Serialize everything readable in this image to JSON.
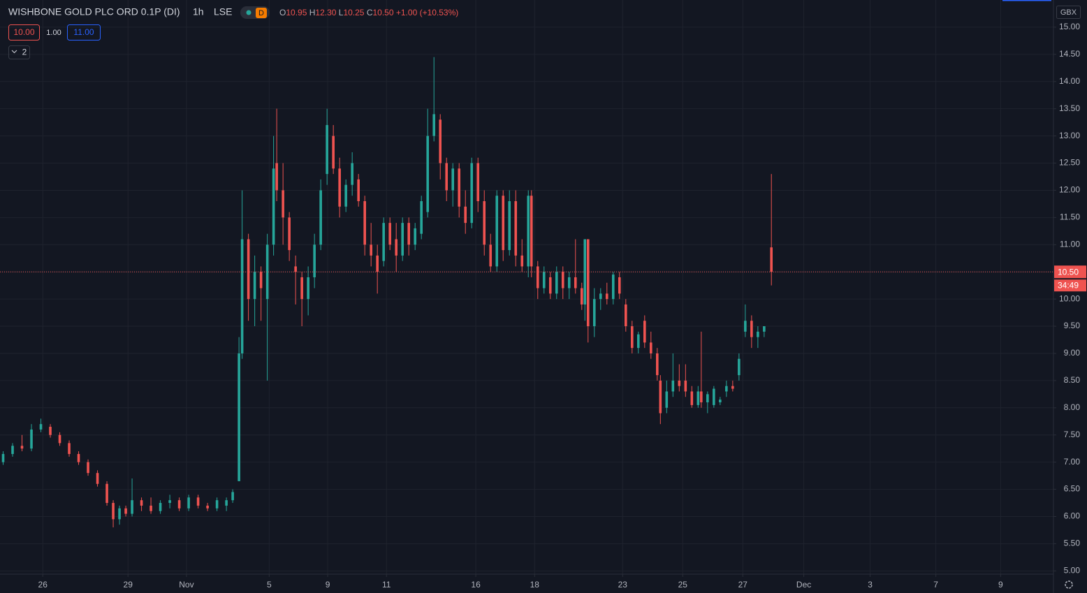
{
  "chart_data": {
    "type": "candlestick",
    "title": "WISHBONE GOLD PLC ORD 0.1P (DI)",
    "interval": "1h",
    "exchange": "LSE",
    "badge": "D",
    "ohlc_legend": [
      {
        "key": "O",
        "value": "10.95"
      },
      {
        "key": "H",
        "value": "12.30"
      },
      {
        "key": "L",
        "value": "10.25"
      },
      {
        "key": "C",
        "value": "10.50"
      }
    ],
    "change": "+1.00 (+10.53%)",
    "buttons": [
      "10.00",
      "1.00",
      "11.00"
    ],
    "indicator_count": "2",
    "currency": "GBX",
    "countdown": "34:49",
    "last_price": {
      "value": 10.5,
      "label": "10.50"
    },
    "up_color": "#26a69a",
    "down_color": "#ef5350",
    "grid": true,
    "xlim": [
      0,
      335
    ],
    "ylim": [
      4.94,
      15.5
    ],
    "xticks": [
      {
        "value": 13.6,
        "label": "26"
      },
      {
        "value": 40.7,
        "label": "29"
      },
      {
        "value": 59.3,
        "label": "Nov"
      },
      {
        "value": 85.6,
        "label": "5"
      },
      {
        "value": 104.2,
        "label": "9"
      },
      {
        "value": 122.9,
        "label": "11"
      },
      {
        "value": 151.3,
        "label": "16"
      },
      {
        "value": 170,
        "label": "18"
      },
      {
        "value": 198,
        "label": "23"
      },
      {
        "value": 217.1,
        "label": "25"
      },
      {
        "value": 236.2,
        "label": "27"
      },
      {
        "value": 255.6,
        "label": "Dec"
      },
      {
        "value": 276.7,
        "label": "3"
      },
      {
        "value": 297.6,
        "label": "7"
      },
      {
        "value": 318.2,
        "label": "9"
      }
    ],
    "yticks": [
      {
        "value": 5,
        "label": "5.00"
      },
      {
        "value": 5.5,
        "label": "5.50"
      },
      {
        "value": 6,
        "label": "6.00"
      },
      {
        "value": 6.5,
        "label": "6.50"
      },
      {
        "value": 7,
        "label": "7.00"
      },
      {
        "value": 7.5,
        "label": "7.50"
      },
      {
        "value": 8,
        "label": "8.00"
      },
      {
        "value": 8.5,
        "label": "8.50"
      },
      {
        "value": 9,
        "label": "9.00"
      },
      {
        "value": 9.5,
        "label": "9.50"
      },
      {
        "value": 10,
        "label": "10.00"
      },
      {
        "value": 10.5,
        "label": "10.50"
      },
      {
        "value": 11,
        "label": "11.00"
      },
      {
        "value": 11.5,
        "label": "11.50"
      },
      {
        "value": 12,
        "label": "12.00"
      },
      {
        "value": 12.5,
        "label": "12.50"
      },
      {
        "value": 13,
        "label": "13.00"
      },
      {
        "value": 13.5,
        "label": "13.50"
      },
      {
        "value": 14,
        "label": "14.00"
      },
      {
        "value": 14.5,
        "label": "14.50"
      },
      {
        "value": 15,
        "label": "15.00"
      }
    ],
    "x": [
      1,
      4,
      7,
      10,
      13,
      16,
      19,
      22,
      25,
      28,
      31,
      34,
      36,
      38,
      40,
      42,
      45,
      48,
      51,
      54,
      57,
      60,
      63,
      66,
      69,
      72,
      74,
      76,
      77,
      79,
      81,
      83,
      85,
      87,
      88,
      90,
      92,
      94,
      96,
      98,
      100,
      102,
      104,
      106,
      108,
      110,
      112,
      114,
      116,
      118,
      120,
      122,
      124,
      126,
      128,
      130,
      132,
      134,
      136,
      138,
      140,
      142,
      144,
      146,
      148,
      150,
      152,
      154,
      156,
      158,
      160,
      162,
      164,
      166,
      168,
      169,
      171,
      173,
      175,
      177,
      179,
      181,
      183,
      185,
      186,
      187,
      189,
      191,
      193,
      195,
      197,
      199,
      201,
      203,
      205,
      207,
      209,
      210,
      212,
      214,
      216,
      218,
      220,
      222,
      223,
      225,
      227,
      229,
      231,
      233,
      235,
      237,
      239,
      241,
      243,
      245.3
    ],
    "open": [
      7.0,
      7.15,
      7.3,
      7.25,
      7.6,
      7.65,
      7.5,
      7.35,
      7.15,
      7.0,
      6.8,
      6.6,
      6.25,
      5.95,
      6.15,
      6.05,
      6.3,
      6.2,
      6.1,
      6.25,
      6.3,
      6.15,
      6.35,
      6.2,
      6.15,
      6.2,
      6.3,
      6.65,
      9.0,
      11.1,
      10.0,
      10.5,
      10.0,
      11.0,
      12.5,
      12.0,
      11.5,
      10.6,
      10.4,
      10.0,
      10.4,
      11.0,
      12.3,
      13.0,
      12.4,
      11.7,
      12.1,
      12.2,
      11.8,
      11.0,
      10.8,
      10.7,
      11.4,
      11.1,
      10.8,
      11.4,
      11.0,
      11.2,
      11.6,
      13.0,
      13.3,
      12.5,
      12.0,
      12.4,
      11.7,
      11.4,
      12.5,
      11.8,
      11.0,
      10.6,
      11.9,
      10.9,
      11.8,
      10.8,
      10.6,
      11.9,
      10.6,
      10.2,
      10.4,
      10.1,
      10.5,
      10.2,
      10.4,
      10.2,
      9.9,
      11.1,
      9.5,
      10.0,
      10.1,
      10.0,
      10.4,
      9.9,
      9.5,
      9.1,
      9.6,
      9.2,
      9.0,
      8.5,
      8.0,
      8.3,
      8.5,
      8.5,
      8.3,
      8.05,
      8.3,
      8.1,
      8.05,
      8.1,
      8.3,
      8.4,
      8.6,
      9.4,
      9.6,
      9.3,
      9.4,
      10.95
    ],
    "high": [
      7.2,
      7.35,
      7.5,
      7.7,
      7.8,
      7.7,
      7.55,
      7.4,
      7.2,
      7.05,
      6.85,
      6.65,
      6.3,
      6.2,
      6.2,
      6.7,
      6.35,
      6.35,
      6.3,
      6.4,
      6.35,
      6.4,
      6.4,
      6.25,
      6.35,
      6.35,
      6.5,
      9.3,
      12.0,
      11.2,
      10.8,
      10.6,
      11.2,
      13.0,
      13.5,
      12.5,
      11.6,
      10.8,
      10.5,
      10.6,
      11.2,
      12.2,
      13.5,
      13.2,
      12.6,
      12.2,
      12.7,
      12.3,
      11.9,
      11.4,
      11.0,
      11.5,
      11.5,
      11.4,
      11.5,
      11.5,
      11.4,
      11.9,
      13.5,
      14.45,
      13.4,
      12.6,
      12.5,
      12.5,
      12.0,
      12.6,
      12.6,
      12.0,
      11.2,
      12.0,
      12.0,
      12.0,
      12.0,
      11.1,
      12.0,
      12.0,
      10.7,
      10.6,
      10.5,
      10.6,
      10.6,
      10.5,
      11.1,
      10.3,
      11.1,
      11.1,
      10.2,
      10.2,
      10.3,
      10.5,
      10.5,
      10.0,
      9.6,
      9.4,
      9.7,
      9.4,
      9.1,
      8.6,
      8.5,
      9.0,
      8.8,
      8.8,
      8.4,
      8.4,
      9.4,
      8.3,
      8.4,
      8.2,
      8.5,
      8.5,
      9.0,
      9.9,
      9.7,
      9.5,
      9.5,
      12.3
    ],
    "low": [
      6.95,
      7.1,
      7.2,
      7.2,
      7.55,
      7.45,
      7.3,
      7.1,
      6.95,
      6.75,
      6.55,
      6.2,
      5.8,
      5.85,
      6.0,
      6.0,
      6.1,
      6.05,
      6.05,
      6.15,
      6.1,
      6.1,
      6.15,
      6.1,
      6.1,
      6.1,
      6.25,
      6.65,
      8.9,
      9.6,
      9.5,
      9.6,
      8.5,
      10.8,
      11.8,
      11.0,
      10.7,
      9.9,
      9.5,
      9.7,
      10.2,
      10.9,
      12.1,
      12.3,
      11.5,
      11.6,
      11.9,
      11.7,
      10.8,
      10.6,
      10.1,
      10.6,
      10.9,
      10.5,
      10.7,
      10.8,
      10.9,
      11.1,
      11.5,
      12.9,
      12.2,
      11.8,
      11.7,
      11.5,
      11.2,
      11.3,
      11.6,
      10.8,
      10.5,
      10.5,
      10.7,
      10.8,
      10.6,
      10.5,
      10.4,
      10.4,
      10.0,
      10.1,
      10.0,
      10.0,
      10.0,
      10.0,
      10.1,
      9.8,
      9.6,
      9.2,
      9.3,
      9.8,
      9.9,
      9.9,
      10.0,
      9.4,
      9.0,
      9.0,
      9.1,
      8.9,
      8.5,
      7.7,
      7.9,
      8.2,
      8.3,
      8.2,
      8.0,
      8.0,
      8.0,
      7.9,
      8.0,
      8.05,
      8.2,
      8.3,
      8.5,
      9.3,
      9.1,
      9.1,
      9.3,
      10.25
    ],
    "close": [
      7.15,
      7.3,
      7.25,
      7.6,
      7.7,
      7.5,
      7.35,
      7.15,
      7.0,
      6.8,
      6.6,
      6.25,
      5.95,
      6.15,
      6.05,
      6.3,
      6.2,
      6.1,
      6.25,
      6.3,
      6.15,
      6.35,
      6.2,
      6.15,
      6.3,
      6.3,
      6.45,
      9.0,
      11.1,
      10.0,
      10.5,
      10.2,
      11.0,
      12.4,
      12.0,
      11.5,
      10.9,
      10.5,
      10.0,
      10.4,
      11.0,
      12.0,
      13.2,
      12.4,
      11.7,
      12.1,
      12.5,
      11.8,
      11.0,
      10.8,
      10.5,
      11.4,
      11.0,
      10.8,
      11.4,
      11.0,
      11.3,
      11.8,
      13.0,
      13.4,
      12.5,
      12.0,
      12.4,
      11.7,
      11.4,
      12.5,
      11.8,
      11.0,
      10.6,
      11.9,
      10.9,
      11.8,
      10.8,
      10.6,
      11.9,
      10.6,
      10.2,
      10.5,
      10.1,
      10.5,
      10.2,
      10.4,
      10.2,
      9.9,
      11.1,
      9.5,
      10.0,
      10.1,
      10.0,
      10.45,
      10.1,
      9.5,
      9.1,
      9.35,
      9.2,
      9.0,
      8.6,
      7.9,
      8.3,
      8.5,
      8.4,
      8.3,
      8.05,
      8.3,
      8.1,
      8.25,
      8.35,
      8.15,
      8.4,
      8.35,
      8.9,
      9.6,
      9.3,
      9.4,
      9.5,
      10.5
    ]
  }
}
